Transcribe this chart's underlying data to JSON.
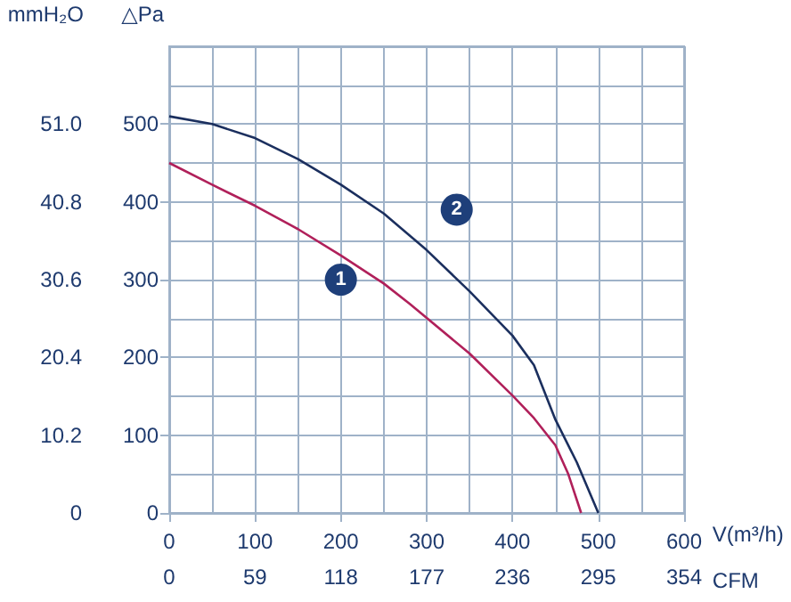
{
  "chart_data": {
    "type": "line",
    "xlabel": "V(m³/h)",
    "ylabel": "△Pa",
    "y2label": "mmH₂O",
    "x2label": "CFM",
    "xlim": [
      0,
      600
    ],
    "xticks": [
      0,
      {
        "value": 50,
        "label": null
      },
      100,
      {
        "value": 150,
        "label": null
      },
      200,
      {
        "value": 250,
        "label": null
      },
      300,
      {
        "value": 350,
        "label": null
      },
      400,
      {
        "value": 450,
        "label": null
      },
      500,
      {
        "value": 550,
        "label": null
      },
      600
    ],
    "ylim": [
      0,
      600
    ],
    "yticks": [
      0,
      {
        "value": 50,
        "label": null
      },
      100,
      {
        "value": 150,
        "label": null
      },
      200,
      {
        "value": 250,
        "label": null
      },
      300,
      {
        "value": 350,
        "label": null
      },
      400,
      {
        "value": 450,
        "label": null
      },
      500,
      {
        "value": 550,
        "label": null
      },
      {
        "value": 600,
        "label": null
      }
    ],
    "y2lim": [
      0,
      61.2
    ],
    "y2ticks": [
      0,
      10.2,
      20.4,
      30.6,
      40.8,
      {
        "value": 51,
        "label": "51.0"
      }
    ],
    "x2lim": [
      0,
      354
    ],
    "x2ticks": [
      0,
      59,
      118,
      177,
      236,
      295,
      354
    ],
    "grid": true,
    "series": [
      {
        "color": "#1b2f5e",
        "x": [
          0,
          50,
          100,
          150,
          200,
          250,
          300,
          350,
          400,
          425,
          450,
          475,
          500
        ],
        "values": [
          510,
          500,
          482,
          455,
          422,
          385,
          338,
          285,
          228,
          190,
          120,
          65,
          0
        ]
      },
      {
        "color": "#b0205a",
        "x": [
          0,
          50,
          100,
          150,
          200,
          250,
          280,
          350,
          400,
          425,
          450,
          465,
          480
        ],
        "values": [
          450,
          422,
          395,
          365,
          331,
          295,
          269,
          205,
          151,
          122,
          87,
          50,
          0
        ]
      }
    ],
    "annotations": [
      {
        "text": "1",
        "x": 200,
        "y": 300
      },
      {
        "text": "2",
        "x": 335,
        "y": 390
      }
    ]
  }
}
